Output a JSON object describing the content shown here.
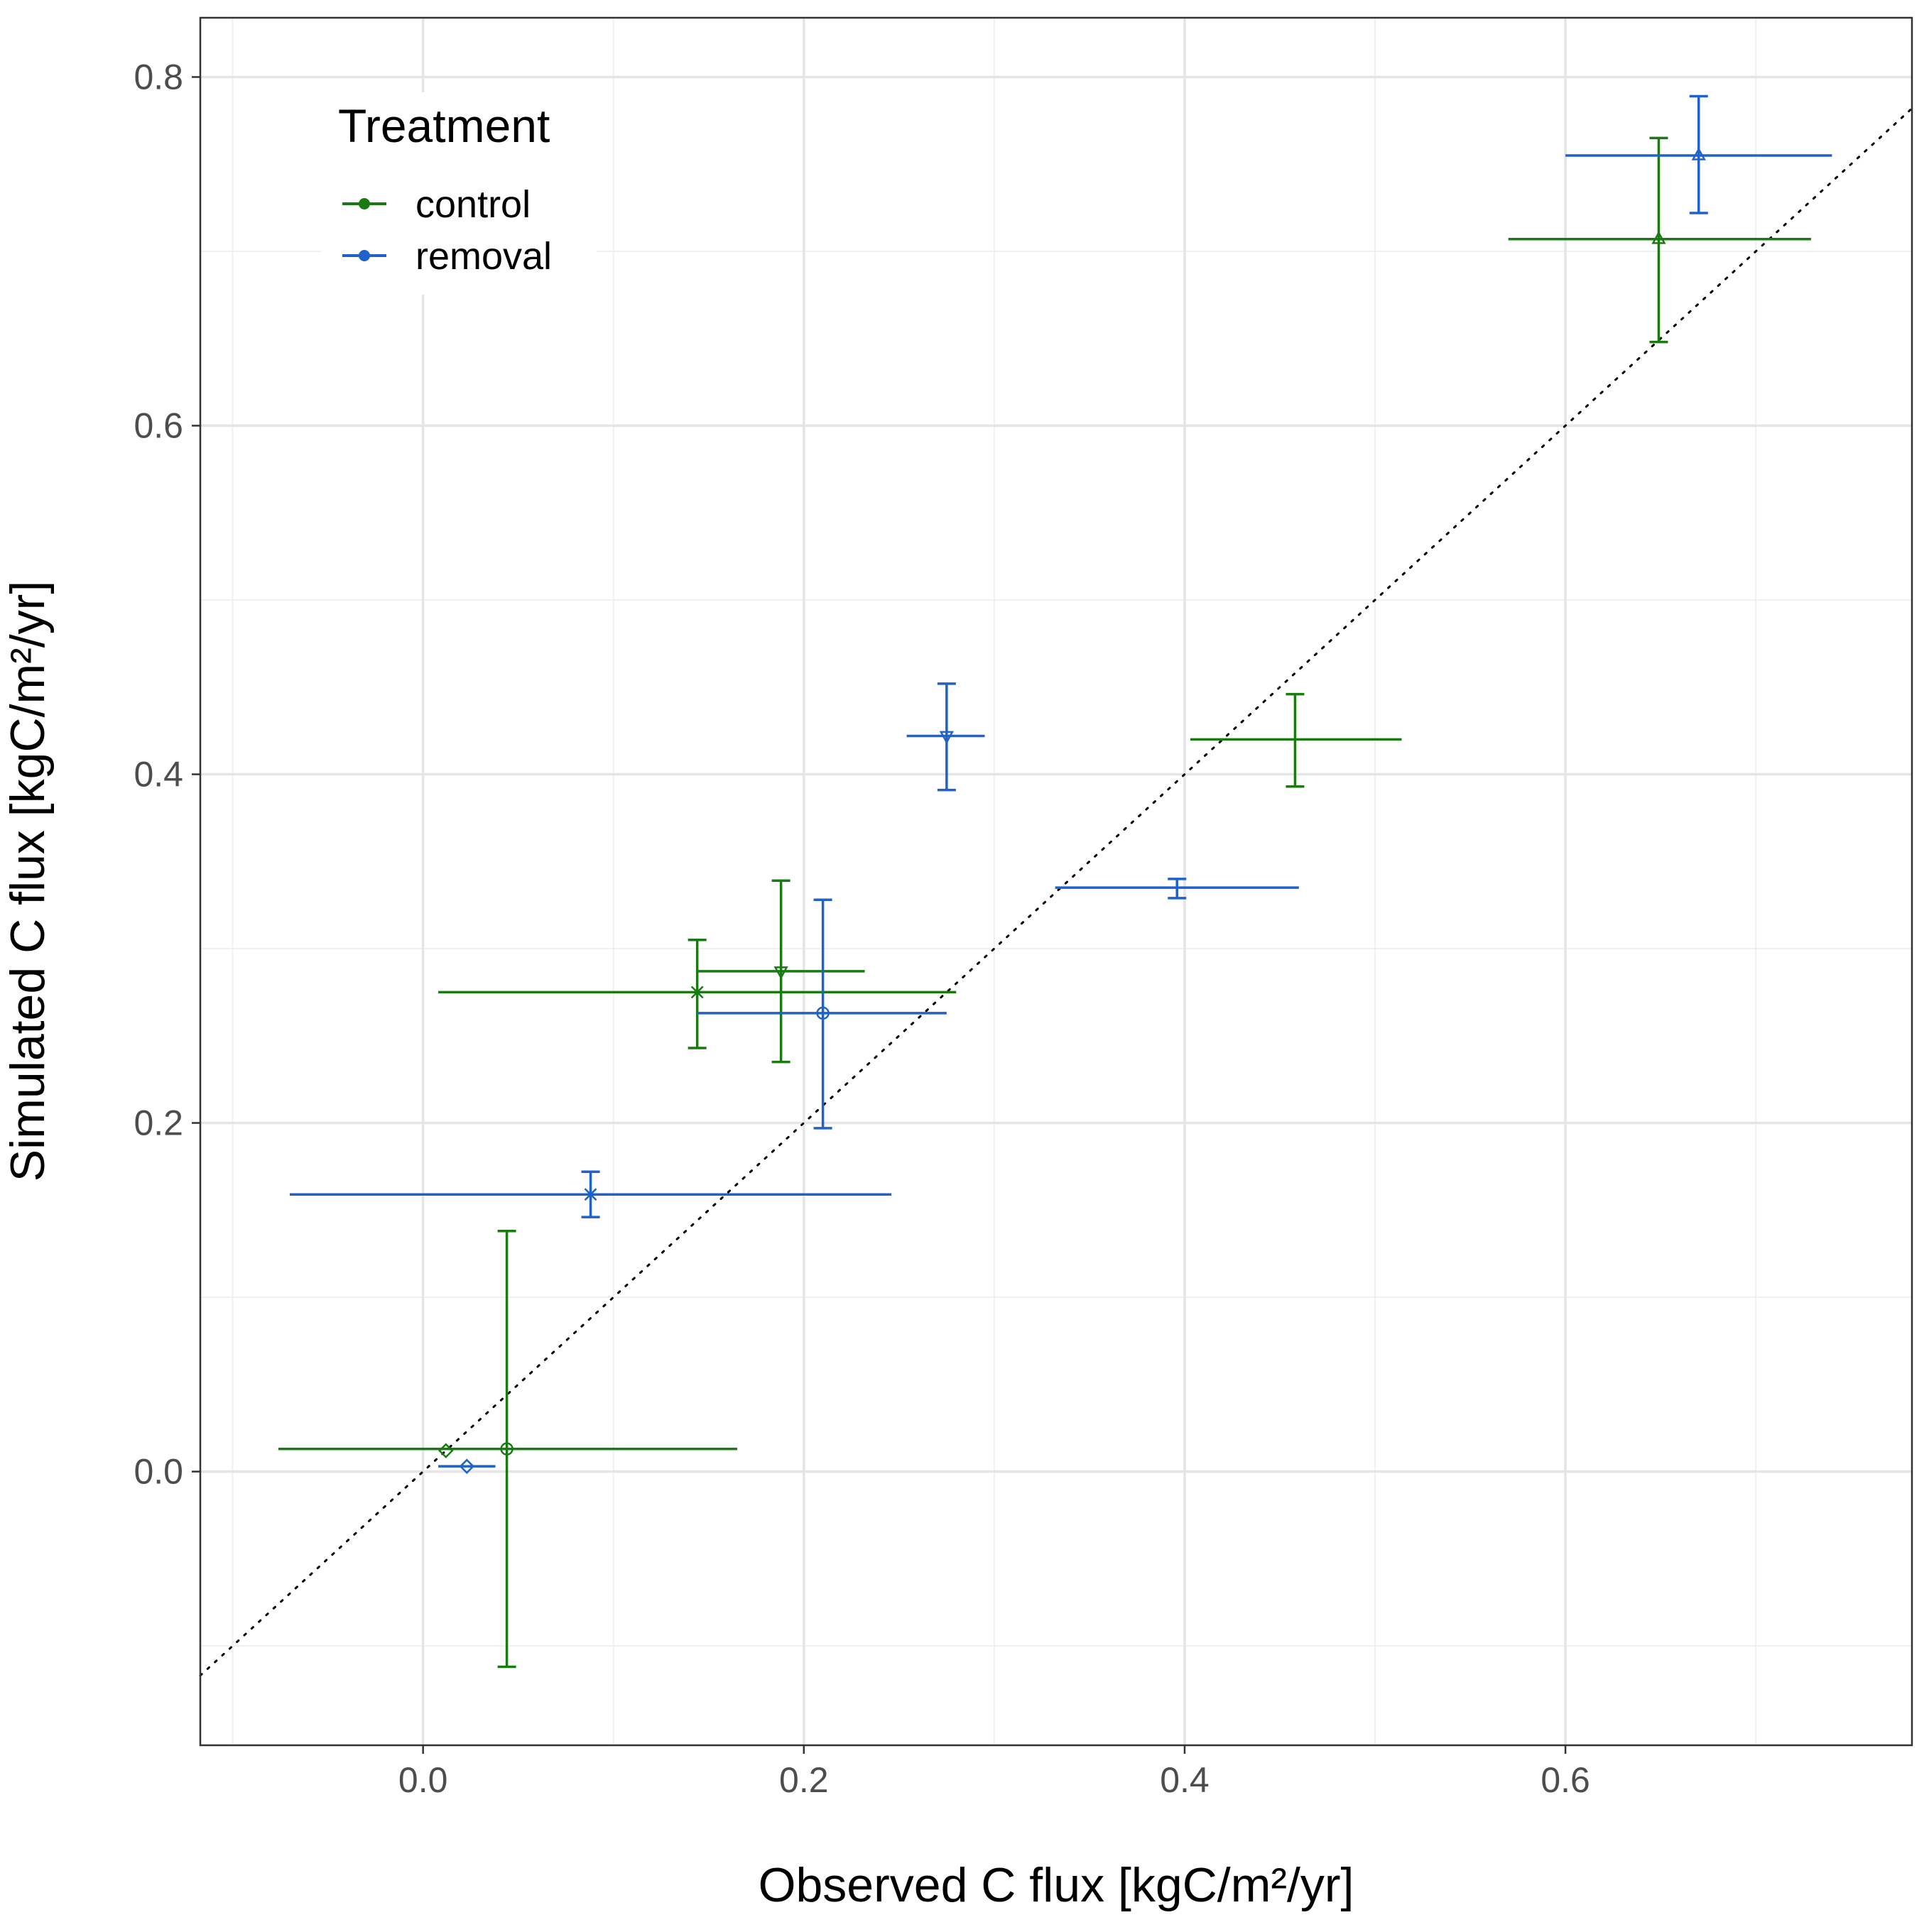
{
  "chart_data": {
    "type": "scatter",
    "xlabel": "Observed C flux [kgC/m²/yr]",
    "ylabel": "Simulated C flux [kgC/m²/yr]",
    "xlim": [
      -0.117,
      0.782
    ],
    "ylim": [
      -0.157,
      0.834
    ],
    "x_ticks": [
      0.0,
      0.2,
      0.4,
      0.6
    ],
    "y_ticks": [
      0.0,
      0.2,
      0.4,
      0.6,
      0.8
    ],
    "x_tick_labels": [
      "0.0",
      "0.2",
      "0.4",
      "0.6"
    ],
    "y_tick_labels": [
      "0.0",
      "0.2",
      "0.4",
      "0.6",
      "0.8"
    ],
    "grid": true,
    "reference_line": {
      "style": "dotted",
      "slope": 1,
      "intercept": 0,
      "color": "#000000"
    },
    "legend": {
      "title": "Treatment",
      "position": "top-left inside",
      "entries": [
        {
          "label": "control",
          "color": "#1a7a12"
        },
        {
          "label": "removal",
          "color": "#1f62c9"
        }
      ]
    },
    "series": [
      {
        "name": "control",
        "color": "#1a7a12",
        "points": [
          {
            "x": 0.012,
            "y": 0.012,
            "xmin": 0.012,
            "xmax": 0.012,
            "ymin": 0.012,
            "ymax": 0.012,
            "shape": "diamond"
          },
          {
            "x": 0.044,
            "y": 0.013,
            "xmin": -0.076,
            "xmax": 0.165,
            "ymin": -0.112,
            "ymax": 0.138,
            "shape": "circle"
          },
          {
            "x": 0.144,
            "y": 0.275,
            "xmin": 0.008,
            "xmax": 0.28,
            "ymin": 0.243,
            "ymax": 0.305,
            "shape": "x"
          },
          {
            "x": 0.188,
            "y": 0.287,
            "xmin": 0.144,
            "xmax": 0.232,
            "ymin": 0.235,
            "ymax": 0.339,
            "shape": "triangle-down"
          },
          {
            "x": 0.458,
            "y": 0.42,
            "xmin": 0.403,
            "xmax": 0.514,
            "ymin": 0.393,
            "ymax": 0.446,
            "shape": "plus"
          },
          {
            "x": 0.649,
            "y": 0.707,
            "xmin": 0.57,
            "xmax": 0.729,
            "ymin": 0.648,
            "ymax": 0.765,
            "shape": "triangle-up"
          }
        ]
      },
      {
        "name": "removal",
        "color": "#1f62c9",
        "points": [
          {
            "x": 0.023,
            "y": 0.003,
            "xmin": 0.008,
            "xmax": 0.038,
            "ymin": 0.003,
            "ymax": 0.003,
            "shape": "diamond"
          },
          {
            "x": 0.088,
            "y": 0.159,
            "xmin": -0.07,
            "xmax": 0.246,
            "ymin": 0.146,
            "ymax": 0.172,
            "shape": "x"
          },
          {
            "x": 0.21,
            "y": 0.263,
            "xmin": 0.144,
            "xmax": 0.275,
            "ymin": 0.197,
            "ymax": 0.328,
            "shape": "circle"
          },
          {
            "x": 0.275,
            "y": 0.422,
            "xmin": 0.254,
            "xmax": 0.295,
            "ymin": 0.391,
            "ymax": 0.452,
            "shape": "triangle-down"
          },
          {
            "x": 0.396,
            "y": 0.335,
            "xmin": 0.332,
            "xmax": 0.46,
            "ymin": 0.329,
            "ymax": 0.34,
            "shape": "plus"
          },
          {
            "x": 0.67,
            "y": 0.755,
            "xmin": 0.6,
            "xmax": 0.74,
            "ymin": 0.722,
            "ymax": 0.789,
            "shape": "triangle-up"
          }
        ]
      }
    ]
  }
}
